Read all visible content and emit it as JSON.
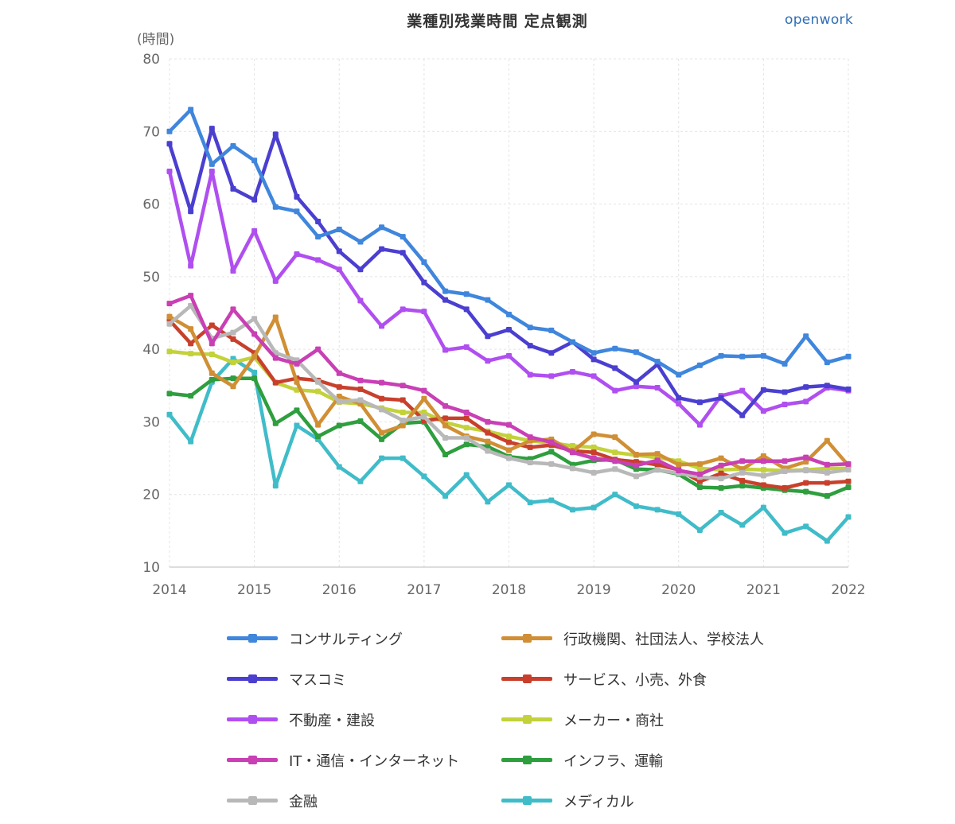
{
  "title": "業種別残業時間 定点観測",
  "brand": "openwork",
  "chart_data": {
    "type": "line",
    "ylabel": "(時間)",
    "ylim": [
      10,
      80
    ],
    "yticks": [
      10,
      20,
      30,
      40,
      50,
      60,
      70,
      80
    ],
    "xlim": [
      2014,
      2022
    ],
    "xticks": [
      "2014",
      "2015",
      "2016",
      "2017",
      "2018",
      "2019",
      "2020",
      "2021",
      "2022"
    ],
    "x": [
      2014.0,
      2014.25,
      2014.5,
      2014.75,
      2015.0,
      2015.25,
      2015.5,
      2015.75,
      2016.0,
      2016.25,
      2016.5,
      2016.75,
      2017.0,
      2017.25,
      2017.5,
      2017.75,
      2018.0,
      2018.25,
      2018.5,
      2018.75,
      2019.0,
      2019.25,
      2019.5,
      2019.75,
      2020.0,
      2020.25,
      2020.5,
      2020.75,
      2021.0,
      2021.25,
      2021.5,
      2021.75,
      2022.0
    ],
    "grid": true,
    "legend_position": "bottom",
    "series": [
      {
        "name": "コンサルティング",
        "color": "#3f86dc",
        "values": [
          70.0,
          73.0,
          65.5,
          68.0,
          66.0,
          59.6,
          59.0,
          55.5,
          56.5,
          54.8,
          56.8,
          55.5,
          52.0,
          48.0,
          47.6,
          46.8,
          44.8,
          43.0,
          42.6,
          41.0,
          39.5,
          40.1,
          39.6,
          38.3,
          36.5,
          37.8,
          39.1,
          39.0,
          39.1,
          38.0,
          41.8,
          38.2,
          39.0
        ]
      },
      {
        "name": "マスコミ",
        "color": "#4b3fd0",
        "values": [
          68.3,
          59.0,
          70.4,
          62.1,
          60.6,
          69.6,
          61.0,
          57.6,
          53.5,
          51.0,
          53.8,
          53.3,
          49.2,
          46.8,
          45.5,
          41.8,
          42.7,
          40.5,
          39.5,
          41.0,
          38.6,
          37.4,
          35.5,
          37.9,
          33.3,
          32.7,
          33.3,
          30.9,
          34.4,
          34.1,
          34.8,
          35.0,
          34.5
        ]
      },
      {
        "name": "不動産・建設",
        "color": "#b04ff0",
        "values": [
          64.5,
          51.5,
          64.5,
          50.8,
          56.3,
          49.4,
          53.1,
          52.3,
          51.0,
          46.7,
          43.2,
          45.5,
          45.2,
          39.9,
          40.3,
          38.4,
          39.1,
          36.5,
          36.3,
          36.9,
          36.3,
          34.3,
          34.9,
          34.7,
          32.5,
          29.6,
          33.6,
          34.3,
          31.5,
          32.4,
          32.8,
          34.7,
          34.3
        ]
      },
      {
        "name": "IT・通信・インターネット",
        "color": "#c93fb4",
        "values": [
          46.3,
          47.4,
          40.8,
          45.5,
          42.1,
          38.8,
          38.0,
          40.0,
          36.7,
          35.7,
          35.4,
          35.0,
          34.3,
          32.2,
          31.3,
          30.0,
          29.6,
          27.9,
          27.2,
          25.8,
          25.0,
          24.6,
          24.0,
          24.7,
          23.3,
          22.8,
          24.0,
          24.6,
          24.6,
          24.6,
          25.1,
          24.1,
          24.2
        ]
      },
      {
        "name": "金融",
        "color": "#b8b8b8",
        "values": [
          43.5,
          46.0,
          41.5,
          42.3,
          44.2,
          39.5,
          38.5,
          35.5,
          32.8,
          33.0,
          31.7,
          30.2,
          30.7,
          27.8,
          27.8,
          26.0,
          25.0,
          24.4,
          24.2,
          23.6,
          23.0,
          23.5,
          22.5,
          23.4,
          22.9,
          22.4,
          22.2,
          23.0,
          22.6,
          23.2,
          23.3,
          23.0,
          23.4
        ]
      },
      {
        "name": "行政機関、社団法人、学校法人",
        "color": "#d08f35",
        "values": [
          44.5,
          42.8,
          36.7,
          34.9,
          39.0,
          44.4,
          35.5,
          29.6,
          33.5,
          32.5,
          28.5,
          29.5,
          33.2,
          29.5,
          28.0,
          27.3,
          26.1,
          27.4,
          27.6,
          25.9,
          28.3,
          27.9,
          25.5,
          25.6,
          24.1,
          24.2,
          25.0,
          23.5,
          25.3,
          23.6,
          24.5,
          27.4,
          24.0
        ]
      },
      {
        "name": "サービス、小売、外食",
        "color": "#c8402c",
        "values": [
          44.0,
          40.8,
          43.3,
          41.4,
          39.5,
          35.4,
          36.0,
          35.7,
          34.8,
          34.5,
          33.2,
          33.0,
          30.2,
          30.5,
          30.5,
          28.5,
          27.2,
          26.5,
          26.8,
          26.0,
          25.8,
          24.8,
          24.5,
          24.1,
          23.4,
          21.8,
          22.9,
          21.9,
          21.3,
          20.9,
          21.6,
          21.6,
          21.8
        ]
      },
      {
        "name": "メーカー・商社",
        "color": "#c3d23a",
        "values": [
          39.7,
          39.4,
          39.3,
          38.2,
          38.9,
          35.4,
          34.4,
          34.2,
          32.7,
          32.5,
          31.9,
          31.3,
          31.3,
          29.9,
          29.2,
          28.7,
          28.0,
          27.4,
          27.1,
          26.7,
          26.5,
          25.8,
          25.4,
          25.1,
          24.6,
          23.6,
          23.4,
          23.5,
          23.4,
          23.3,
          23.4,
          23.6,
          23.6
        ]
      },
      {
        "name": "インフラ、運輸",
        "color": "#2e9e3e",
        "values": [
          33.9,
          33.6,
          35.8,
          36.0,
          36.0,
          29.8,
          31.6,
          28.0,
          29.5,
          30.1,
          27.6,
          29.8,
          30.0,
          25.5,
          26.9,
          26.6,
          25.2,
          24.9,
          25.9,
          24.1,
          24.7,
          24.8,
          23.5,
          23.4,
          22.8,
          21.0,
          20.9,
          21.2,
          20.9,
          20.6,
          20.4,
          19.8,
          21.0
        ]
      },
      {
        "name": "メディカル",
        "color": "#40bcc9",
        "values": [
          31.0,
          27.3,
          35.5,
          38.7,
          36.8,
          21.2,
          29.5,
          27.6,
          23.8,
          21.8,
          25.0,
          25.0,
          22.5,
          19.8,
          22.7,
          19.0,
          21.3,
          18.9,
          19.2,
          17.9,
          18.2,
          20.0,
          18.4,
          17.9,
          17.3,
          15.1,
          17.5,
          15.8,
          18.2,
          14.7,
          15.6,
          13.6,
          16.9
        ]
      }
    ]
  }
}
